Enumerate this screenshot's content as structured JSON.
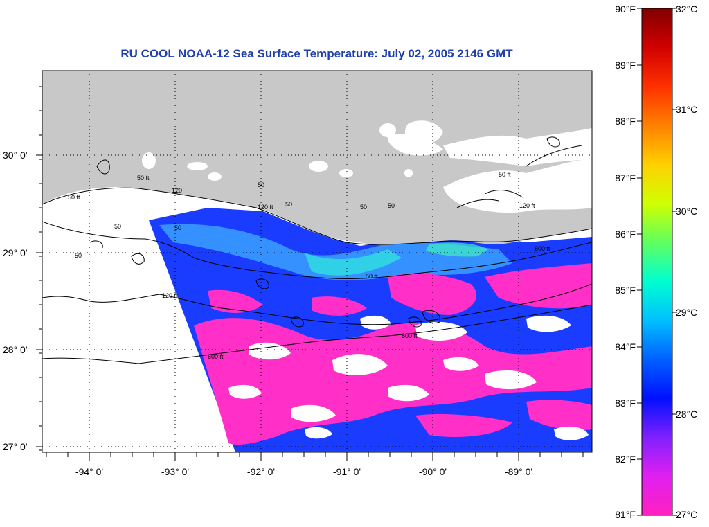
{
  "title": "RU COOL  NOAA-12  Sea Surface Temperature:  July 02, 2005 2146 GMT",
  "map": {
    "lon_ticks": [
      "-94° 0'",
      "-93° 0'",
      "-92° 0'",
      "-91° 0'",
      "-90° 0'",
      "-89° 0'"
    ],
    "lat_ticks": [
      "30° 0'",
      "29° 0'",
      "28° 0'",
      "27° 0'"
    ],
    "contour_labels": [
      "50 ft",
      "50 ft",
      "120",
      "50",
      "50",
      "50",
      "50",
      "120 ft",
      "50",
      "50",
      "50",
      "50 ft",
      "120 ft",
      "600 ft",
      "600 ft",
      "600 ft",
      "120 ft",
      "50 ft"
    ],
    "colors": {
      "land": "#c8c8c8",
      "cloud": "#ffffff",
      "grid": "#000000"
    }
  },
  "colorbar": {
    "fahrenheit": [
      "90°F",
      "89°F",
      "88°F",
      "87°F",
      "86°F",
      "85°F",
      "84°F",
      "83°F",
      "82°F",
      "81°F"
    ],
    "celsius": [
      "32°C",
      "31°C",
      "30°C",
      "29°C",
      "28°C",
      "27°C"
    ],
    "gradient": [
      "#800000",
      "#d00000",
      "#ff3000",
      "#ff8000",
      "#ffd000",
      "#d0ff00",
      "#60ff60",
      "#00ffd0",
      "#00c0ff",
      "#0060ff",
      "#0010ff",
      "#8020ff",
      "#e020f0",
      "#ff20c0"
    ]
  }
}
